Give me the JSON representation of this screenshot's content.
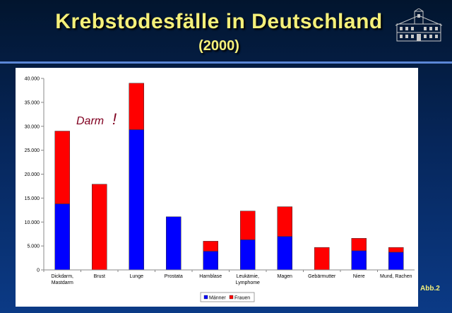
{
  "header": {
    "title": "Krebstodesfälle in Deutschland",
    "subtitle": "(2000)",
    "figure_label": "Abb.2"
  },
  "colors": {
    "maenner": "#0000ff",
    "frauen": "#ff0000",
    "title_text": "#f5f07a",
    "annotation": "#800020"
  },
  "icons": {
    "logo": "castle-building-logo"
  },
  "chart_data": {
    "type": "bar",
    "stacked": true,
    "categories": [
      [
        "Dickdarm,",
        "Mastdarm"
      ],
      [
        "Brust"
      ],
      [
        "Lunge"
      ],
      [
        "Prostata"
      ],
      [
        "Harnblase"
      ],
      [
        "Leukämie,",
        "Lymphome"
      ],
      [
        "Magen"
      ],
      [
        "Gebärmutter"
      ],
      [
        "Niere"
      ],
      [
        "Mund, Rachen"
      ]
    ],
    "series": [
      {
        "name": "Männer",
        "color": "#0000ff",
        "values": [
          13800,
          0,
          29300,
          11100,
          3900,
          6300,
          7000,
          0,
          4000,
          3700
        ]
      },
      {
        "name": "Frauen",
        "color": "#ff0000",
        "values": [
          15200,
          17900,
          9700,
          0,
          2100,
          6000,
          6200,
          4700,
          2600,
          1000
        ]
      }
    ],
    "ylim": [
      0,
      40000
    ],
    "yticks": [
      0,
      5000,
      10000,
      15000,
      20000,
      25000,
      30000,
      35000,
      40000
    ],
    "ytick_labels": [
      "0",
      "5.000",
      "10.000",
      "15.000",
      "20.000",
      "25.000",
      "30.000",
      "35.000",
      "40.000"
    ],
    "grid": false,
    "legend_position": "bottom",
    "annotation": {
      "text": "Darm",
      "mark": "!"
    }
  }
}
